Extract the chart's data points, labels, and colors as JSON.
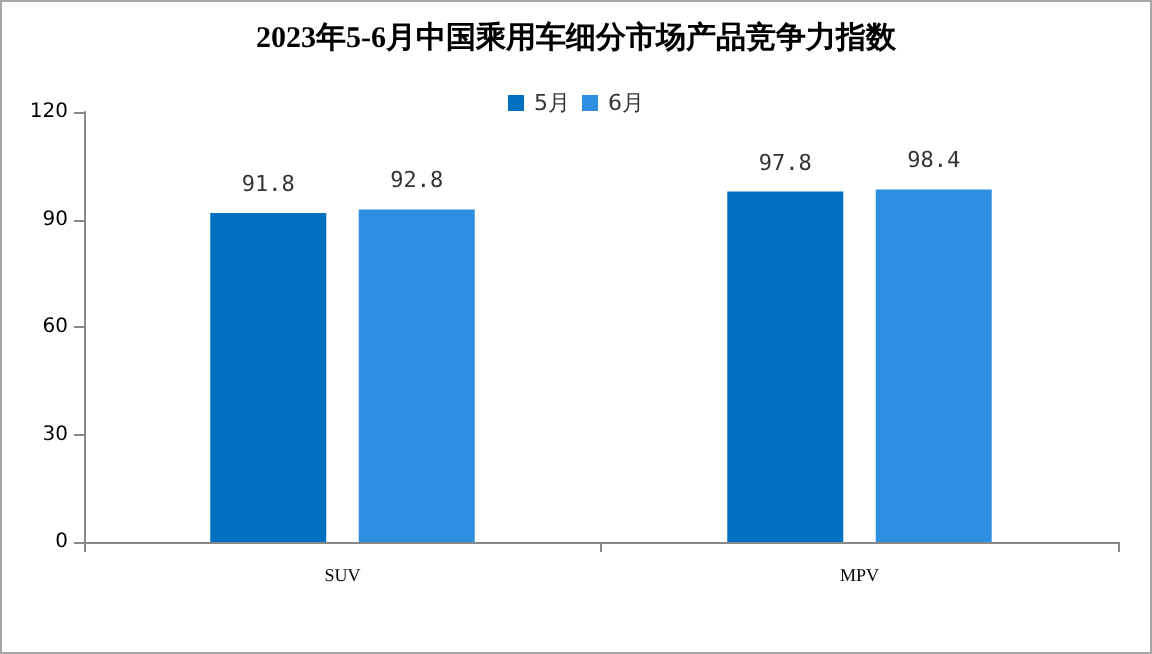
{
  "chart_data": {
    "type": "bar",
    "title": "2023年5-6月中国乘用车细分市场产品竞争力指数",
    "categories": [
      "SUV",
      "MPV"
    ],
    "series": [
      {
        "name": "5月",
        "color": "#0070c0",
        "values": [
          91.8,
          97.8
        ]
      },
      {
        "name": "6月",
        "color": "#2e8ee0",
        "values": [
          92.8,
          98.4
        ]
      }
    ],
    "ylim": [
      0,
      120
    ],
    "yticks": [
      0,
      30,
      60,
      90,
      120
    ],
    "grid": false,
    "legend": "top",
    "data_labels": true
  }
}
